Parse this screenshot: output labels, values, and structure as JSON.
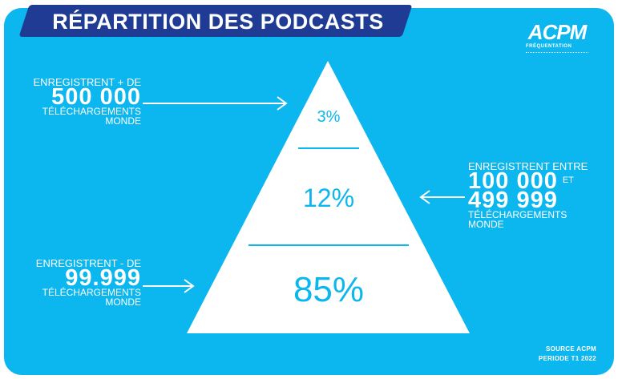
{
  "title": "RÉPARTITION DES PODCASTS",
  "logo": {
    "main": "ACPM",
    "sub": "FRÉQUENTATION"
  },
  "pyramid": {
    "top_pct": "3%",
    "middle_pct": "12%",
    "bottom_pct": "85%"
  },
  "labels": {
    "top": {
      "line1": "ENREGISTRENT + DE",
      "number": "500 000",
      "line3": "TÉLÉCHARGEMENTS",
      "line4": "MONDE"
    },
    "right": {
      "line1": "ENREGISTRENT ENTRE",
      "number1": "100 000",
      "conj": "ET",
      "number2": "499 999",
      "line4": "TÉLÉCHARGEMENTS",
      "line5": "MONDE"
    },
    "bottom": {
      "line1": "ENREGISTRENT - DE",
      "number": "99.999",
      "line3": "TÉLÉCHARGEMENTS",
      "line4": "MONDE"
    }
  },
  "footer": {
    "line1": "SOURCE ACPM",
    "line2": "PERIODE T1 2022"
  },
  "colors": {
    "background": "#0cb6ee",
    "banner": "#1f3b93",
    "pyramid": "#ffffff"
  }
}
